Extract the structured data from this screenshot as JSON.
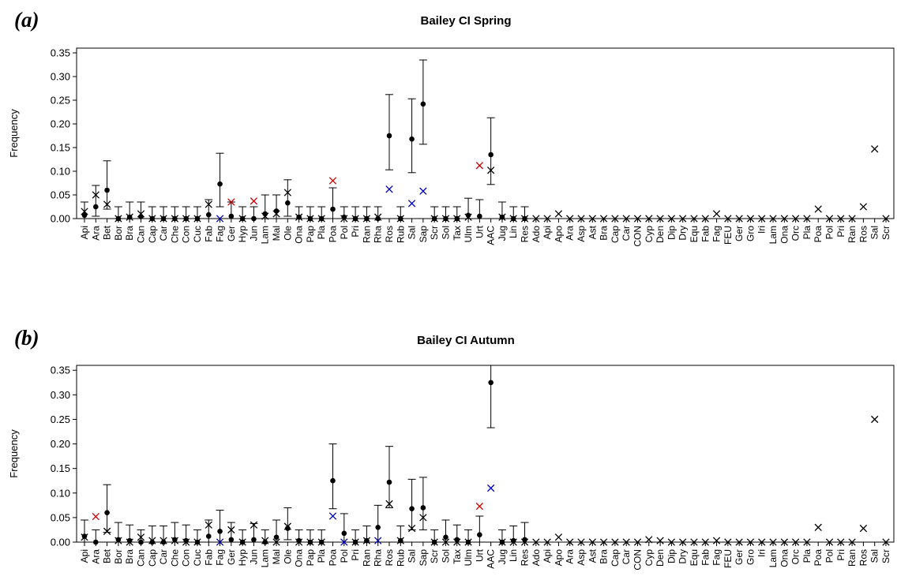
{
  "colors": {
    "default": "#000000",
    "red": "#cc0000",
    "blue": "#0000bb"
  },
  "chart_data": [
    {
      "type": "scatter",
      "panel_label": "(a)",
      "title": "Bailey CI Spring",
      "ylabel": "Frequency",
      "ylim": [
        0,
        0.36
      ],
      "yticks": [
        "0.00",
        "0.05",
        "0.10",
        "0.15",
        "0.20",
        "0.25",
        "0.30",
        "0.35"
      ],
      "categories": [
        "Api",
        "Ara",
        "Bet",
        "Bor",
        "Bra",
        "Can",
        "Cap",
        "Car",
        "Che",
        "Con",
        "Cuc",
        "Fab",
        "Fag",
        "Ger",
        "Hyp",
        "Jun",
        "Lam",
        "Mal",
        "Ole",
        "Ona",
        "Pap",
        "Pla",
        "Poa",
        "Pol",
        "Pri",
        "Ran",
        "Rha",
        "Ros",
        "Rub",
        "Sal",
        "Sap",
        "Scr",
        "Sol",
        "Tax",
        "Ulm",
        "Urt",
        "AAC",
        "Jug",
        "Lin",
        "Res",
        "Ado",
        "Api",
        "Apo",
        "Ara",
        "Asp",
        "Ast",
        "Bra",
        "Cap",
        "Car",
        "CON",
        "Cyp",
        "Den",
        "Dip",
        "Dry",
        "Equ",
        "Fab",
        "Fag",
        "FEU",
        "Ger",
        "Gro",
        "Iri",
        "Lam",
        "Ona",
        "Orc",
        "Pla",
        "Poa",
        "Pol",
        "Pri",
        "Ran",
        "Ros",
        "Sal",
        "Scr"
      ],
      "series": [
        {
          "marker": "dot",
          "values": [
            0.007,
            0.025,
            0.06,
            0.0,
            0.003,
            0.004,
            0.0,
            0.0,
            0.0,
            0.0,
            0.0,
            0.008,
            0.073,
            0.005,
            0.0,
            0.0,
            0.01,
            0.016,
            0.033,
            0.003,
            0.0,
            0.0,
            0.02,
            0.003,
            0.0,
            0.0,
            0.0,
            0.175,
            0.0,
            0.168,
            0.242,
            0.0,
            0.0,
            0.0,
            0.007,
            0.005,
            0.135,
            0.003,
            0.0,
            0.0,
            null,
            null,
            null,
            null,
            null,
            null,
            null,
            null,
            null,
            null,
            null,
            null,
            null,
            null,
            null,
            null,
            null,
            null,
            null,
            null,
            null,
            null,
            null,
            null,
            null,
            null,
            null,
            null,
            null,
            null,
            null,
            null
          ],
          "err_low": [
            0.0,
            0.005,
            0.02,
            0.0,
            0.0,
            0.0,
            0.0,
            0.0,
            0.0,
            0.0,
            0.0,
            0.0,
            0.025,
            0.0,
            0.0,
            0.0,
            0.0,
            0.0,
            0.005,
            0.0,
            0.0,
            0.0,
            0.0,
            0.0,
            0.0,
            0.0,
            0.0,
            0.103,
            0.0,
            0.097,
            0.157,
            0.0,
            0.0,
            0.0,
            0.0,
            0.0,
            0.072,
            0.0,
            0.0,
            0.0,
            null,
            null,
            null,
            null,
            null,
            null,
            null,
            null,
            null,
            null,
            null,
            null,
            null,
            null,
            null,
            null,
            null,
            null,
            null,
            null,
            null,
            null,
            null,
            null,
            null,
            null,
            null,
            null,
            null,
            null,
            null,
            null
          ],
          "err_high": [
            0.035,
            0.07,
            0.122,
            0.025,
            0.035,
            0.035,
            0.025,
            0.025,
            0.025,
            0.025,
            0.025,
            0.04,
            0.138,
            0.035,
            0.025,
            0.025,
            0.05,
            0.05,
            0.082,
            0.025,
            0.025,
            0.025,
            0.065,
            0.025,
            0.025,
            0.025,
            0.025,
            0.262,
            0.025,
            0.253,
            0.335,
            0.025,
            0.025,
            0.025,
            0.043,
            0.04,
            0.213,
            0.035,
            0.025,
            0.025,
            null,
            null,
            null,
            null,
            null,
            null,
            null,
            null,
            null,
            null,
            null,
            null,
            null,
            null,
            null,
            null,
            null,
            null,
            null,
            null,
            null,
            null,
            null,
            null,
            null,
            null,
            null,
            null,
            null,
            null,
            null,
            null
          ]
        },
        {
          "marker": "x",
          "values": [
            0.015,
            0.05,
            0.03,
            0.0,
            0.003,
            0.01,
            0.0,
            0.0,
            0.0,
            0.0,
            0.0,
            0.03,
            0.0,
            0.035,
            0.0,
            0.037,
            0.005,
            0.01,
            0.055,
            0.003,
            0.0,
            0.0,
            0.08,
            0.0,
            0.0,
            0.0,
            0.003,
            0.062,
            0.0,
            0.032,
            0.058,
            0.0,
            0.0,
            0.0,
            0.003,
            0.112,
            0.102,
            0.003,
            0.0,
            0.0,
            0.0,
            0.0,
            0.01,
            0.0,
            0.0,
            0.0,
            0.0,
            0.0,
            0.0,
            0.0,
            0.0,
            0.0,
            0.0,
            0.0,
            0.0,
            0.0,
            0.01,
            0.0,
            0.0,
            0.0,
            0.0,
            0.0,
            0.0,
            0.0,
            0.0,
            0.02,
            0.0,
            0.0,
            0.0,
            0.025,
            0.147,
            0.0
          ],
          "colors": [
            "default",
            "default",
            "default",
            "default",
            "default",
            "default",
            "default",
            "default",
            "default",
            "default",
            "default",
            "default",
            "blue",
            "red",
            "default",
            "red",
            "default",
            "default",
            "default",
            "default",
            "default",
            "default",
            "red",
            "default",
            "default",
            "default",
            "default",
            "blue",
            "default",
            "blue",
            "blue",
            "default",
            "default",
            "default",
            "default",
            "red",
            "default",
            "default",
            "default",
            "default",
            "default",
            "default",
            "default",
            "default",
            "default",
            "default",
            "default",
            "default",
            "default",
            "default",
            "default",
            "default",
            "default",
            "default",
            "default",
            "default",
            "default",
            "default",
            "default",
            "default",
            "default",
            "default",
            "default",
            "default",
            "default",
            "default",
            "default",
            "default",
            "default",
            "default",
            "default",
            "default"
          ]
        }
      ]
    },
    {
      "type": "scatter",
      "panel_label": "(b)",
      "title": "Bailey CI Autumn",
      "ylabel": "Frequency",
      "ylim": [
        0,
        0.36
      ],
      "yticks": [
        "0.00",
        "0.05",
        "0.10",
        "0.15",
        "0.20",
        "0.25",
        "0.30",
        "0.35"
      ],
      "categories": [
        "Api",
        "Ara",
        "Bet",
        "Bor",
        "Bra",
        "Can",
        "Cap",
        "Car",
        "Che",
        "Con",
        "Cuc",
        "Fab",
        "Fag",
        "Ger",
        "Hyp",
        "Jun",
        "Lam",
        "Mal",
        "Ole",
        "Ona",
        "Pap",
        "Pla",
        "Poa",
        "Pol",
        "Pri",
        "Ran",
        "Rha",
        "Ros",
        "Rub",
        "Sal",
        "Sap",
        "Scr",
        "Sol",
        "Tax",
        "Ulm",
        "Urt",
        "AAC",
        "Jug",
        "Lin",
        "Res",
        "Ado",
        "Api",
        "Apo",
        "Ara",
        "Asp",
        "Ast",
        "Bra",
        "Cap",
        "Car",
        "CON",
        "Cyp",
        "Den",
        "Dip",
        "Dry",
        "Equ",
        "Fab",
        "Fag",
        "FEU",
        "Ger",
        "Gro",
        "Iri",
        "Lam",
        "Ona",
        "Orc",
        "Pla",
        "Poa",
        "Pol",
        "Pri",
        "Ran",
        "Ros",
        "Sal",
        "Scr"
      ],
      "series": [
        {
          "marker": "dot",
          "values": [
            0.012,
            0.0,
            0.06,
            0.005,
            0.003,
            0.0,
            0.0,
            0.0,
            0.005,
            0.003,
            0.0,
            0.012,
            0.022,
            0.005,
            0.0,
            0.005,
            0.0,
            0.01,
            0.028,
            0.003,
            0.0,
            0.0,
            0.125,
            0.018,
            0.0,
            0.003,
            0.03,
            0.122,
            0.003,
            0.068,
            0.07,
            0.0,
            0.01,
            0.005,
            0.0,
            0.015,
            0.325,
            0.0,
            0.003,
            0.005,
            null,
            null,
            null,
            null,
            null,
            null,
            null,
            null,
            null,
            null,
            null,
            null,
            null,
            null,
            null,
            null,
            null,
            null,
            null,
            null,
            null,
            null,
            null,
            null,
            null,
            null,
            null,
            null,
            null,
            null,
            null,
            null
          ],
          "err_low": [
            0.0,
            0.0,
            0.02,
            0.0,
            0.0,
            0.0,
            0.0,
            0.0,
            0.0,
            0.0,
            0.0,
            0.0,
            0.0,
            0.0,
            0.0,
            0.0,
            0.0,
            0.0,
            0.005,
            0.0,
            0.0,
            0.0,
            0.068,
            0.0,
            0.0,
            0.0,
            0.0,
            0.07,
            0.0,
            0.025,
            0.025,
            0.0,
            0.0,
            0.0,
            0.0,
            0.0,
            0.233,
            0.0,
            0.0,
            0.0,
            null,
            null,
            null,
            null,
            null,
            null,
            null,
            null,
            null,
            null,
            null,
            null,
            null,
            null,
            null,
            null,
            null,
            null,
            null,
            null,
            null,
            null,
            null,
            null,
            null,
            null,
            null,
            null,
            null,
            null,
            null,
            null
          ],
          "err_high": [
            0.045,
            0.025,
            0.117,
            0.04,
            0.035,
            0.025,
            0.033,
            0.033,
            0.04,
            0.035,
            0.025,
            0.045,
            0.065,
            0.04,
            0.025,
            0.038,
            0.025,
            0.045,
            0.07,
            0.025,
            0.025,
            0.025,
            0.2,
            0.058,
            0.025,
            0.033,
            0.075,
            0.195,
            0.033,
            0.128,
            0.132,
            0.025,
            0.045,
            0.035,
            0.025,
            0.053,
            0.36,
            0.025,
            0.033,
            0.04,
            null,
            null,
            null,
            null,
            null,
            null,
            null,
            null,
            null,
            null,
            null,
            null,
            null,
            null,
            null,
            null,
            null,
            null,
            null,
            null,
            null,
            null,
            null,
            null,
            null,
            null,
            null,
            null,
            null,
            null,
            null,
            null
          ]
        },
        {
          "marker": "x",
          "values": [
            0.01,
            0.052,
            0.022,
            0.003,
            0.0,
            0.01,
            0.003,
            0.003,
            0.003,
            0.0,
            0.0,
            0.035,
            0.0,
            0.025,
            0.0,
            0.035,
            0.003,
            0.0,
            0.032,
            0.0,
            0.0,
            0.0,
            0.053,
            0.0,
            0.0,
            0.003,
            0.003,
            0.078,
            0.003,
            0.028,
            0.05,
            0.0,
            0.0,
            0.0,
            0.0,
            0.073,
            0.11,
            0.0,
            0.0,
            0.0,
            0.0,
            0.0,
            0.01,
            0.0,
            0.0,
            0.0,
            0.0,
            0.0,
            0.0,
            0.0,
            0.005,
            0.003,
            0.0,
            0.0,
            0.0,
            0.0,
            0.003,
            0.0,
            0.0,
            0.0,
            0.0,
            0.0,
            0.0,
            0.0,
            0.0,
            0.03,
            0.0,
            0.0,
            0.0,
            0.028,
            0.25,
            0.0
          ],
          "colors": [
            "default",
            "red",
            "default",
            "default",
            "default",
            "default",
            "default",
            "default",
            "default",
            "default",
            "default",
            "default",
            "blue",
            "default",
            "default",
            "default",
            "default",
            "default",
            "default",
            "default",
            "default",
            "default",
            "blue",
            "blue",
            "default",
            "default",
            "blue",
            "default",
            "default",
            "default",
            "default",
            "default",
            "default",
            "default",
            "default",
            "red",
            "blue",
            "default",
            "default",
            "default",
            "default",
            "default",
            "default",
            "default",
            "default",
            "default",
            "default",
            "default",
            "default",
            "default",
            "default",
            "default",
            "default",
            "default",
            "default",
            "default",
            "default",
            "default",
            "default",
            "default",
            "default",
            "default",
            "default",
            "default",
            "default",
            "default",
            "default",
            "default",
            "default",
            "default",
            "default",
            "default"
          ]
        }
      ]
    }
  ]
}
